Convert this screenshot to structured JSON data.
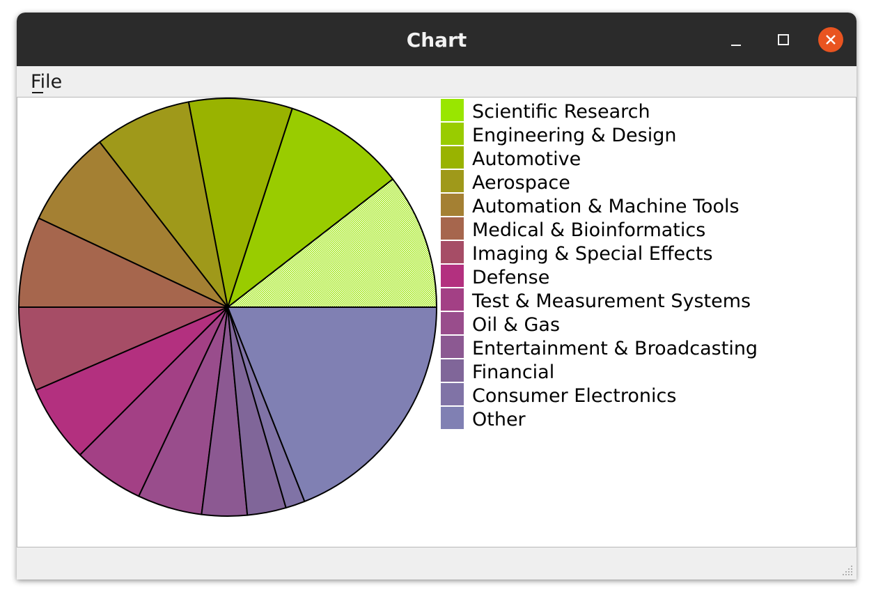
{
  "window": {
    "title": "Chart"
  },
  "menu": {
    "file_label": "File"
  },
  "colors": {
    "titlebar": "#2b2b2b",
    "close_button": "#e95420",
    "window_bg": "#efefef",
    "canvas_bg": "#ffffff"
  },
  "chart_data": {
    "type": "pie",
    "start_angle_deg": 0,
    "direction": "counterclockwise",
    "legend_position": "right",
    "slices": [
      {
        "label": "Scientific Research",
        "value": 10.5,
        "color": "#99e600",
        "pattern": "dotted"
      },
      {
        "label": "Engineering & Design",
        "value": 9.5,
        "color": "#99cc00",
        "pattern": "solid"
      },
      {
        "label": "Automotive",
        "value": 8.0,
        "color": "#99b300",
        "pattern": "solid"
      },
      {
        "label": "Aerospace",
        "value": 7.5,
        "color": "#9f991a",
        "pattern": "solid"
      },
      {
        "label": "Automation & Machine Tools",
        "value": 7.5,
        "color": "#a48033",
        "pattern": "solid"
      },
      {
        "label": "Medical & Bioinformatics",
        "value": 7.0,
        "color": "#a6664d",
        "pattern": "solid"
      },
      {
        "label": "Imaging & Special Effects",
        "value": 6.5,
        "color": "#a64d66",
        "pattern": "solid"
      },
      {
        "label": "Defense",
        "value": 6.0,
        "color": "#b3307f",
        "pattern": "solid"
      },
      {
        "label": "Test & Measurement Systems",
        "value": 5.5,
        "color": "#a34085",
        "pattern": "solid"
      },
      {
        "label": "Oil & Gas",
        "value": 5.0,
        "color": "#994d8c",
        "pattern": "solid"
      },
      {
        "label": "Entertainment & Broadcasting",
        "value": 3.5,
        "color": "#8c5992",
        "pattern": "solid"
      },
      {
        "label": "Financial",
        "value": 3.0,
        "color": "#806699",
        "pattern": "solid"
      },
      {
        "label": "Consumer Electronics",
        "value": 1.5,
        "color": "#8073a6",
        "pattern": "solid"
      },
      {
        "label": "Other",
        "value": 19.0,
        "color": "#8080b3",
        "pattern": "solid"
      }
    ]
  }
}
